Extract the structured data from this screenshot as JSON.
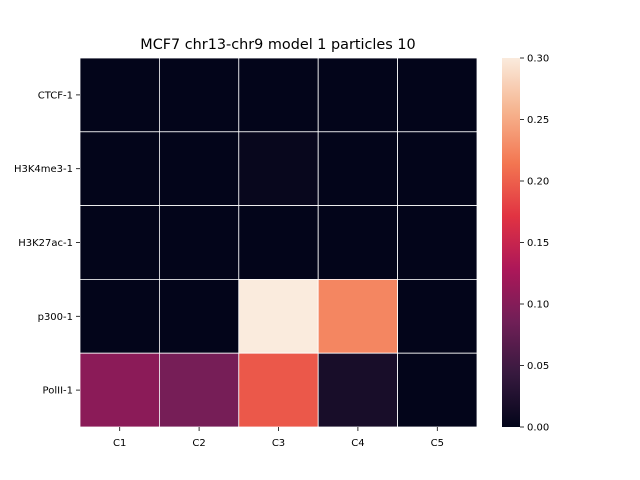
{
  "chart_data": {
    "type": "heatmap",
    "title": "MCF7 chr13-chr9 model 1 particles 10",
    "xlabel": "",
    "ylabel": "",
    "columns": [
      "C1",
      "C2",
      "C3",
      "C4",
      "C5"
    ],
    "rows": [
      "CTCF-1",
      "H3K4me3-1",
      "H3K27ac-1",
      "p300-1",
      "PolII-1"
    ],
    "values": [
      [
        0.0,
        0.0,
        0.0,
        0.0,
        0.0
      ],
      [
        0.0,
        0.0,
        0.004,
        0.0,
        0.0
      ],
      [
        0.0,
        0.0,
        0.0,
        0.0,
        0.0
      ],
      [
        0.0,
        0.0,
        0.3,
        0.225,
        0.0
      ],
      [
        0.105,
        0.09,
        0.195,
        0.018,
        0.0
      ]
    ],
    "vmin": 0.0,
    "vmax": 0.3,
    "colorbar": {
      "ticks": [
        0.0,
        0.05,
        0.1,
        0.15,
        0.2,
        0.25,
        0.3
      ],
      "tick_labels": [
        "0.00",
        "0.05",
        "0.10",
        "0.15",
        "0.20",
        "0.25",
        "0.30"
      ]
    },
    "colormap": "rocket",
    "colormap_stops": [
      "#03051a",
      "#36193e",
      "#701f57",
      "#ad1759",
      "#e13342",
      "#f37651",
      "#f6b48f",
      "#faebdd"
    ],
    "grid": false
  }
}
